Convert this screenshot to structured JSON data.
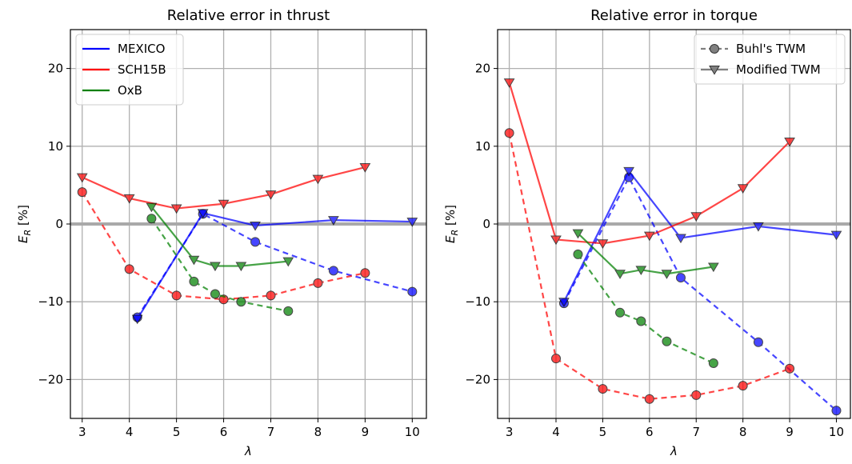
{
  "chart_data": [
    {
      "type": "line",
      "title": "Relative error in thrust",
      "xlabel": "λ",
      "ylabel": "E_R [%]",
      "xlim": [
        2.75,
        10.3
      ],
      "ylim": [
        -25,
        25
      ],
      "xticks": [
        3,
        4,
        5,
        6,
        7,
        8,
        9,
        10
      ],
      "yticks": [
        -20,
        -10,
        0,
        10,
        20
      ],
      "grid": true,
      "zero_line": true,
      "legend_position": "top-left",
      "legend": [
        "MEXICO",
        "SCH15B",
        "OxB"
      ],
      "series": [
        {
          "name": "MEXICO",
          "method": "Buhl's TWM",
          "color": "#0000ff",
          "x": [
            4.17,
            5.56,
            6.67,
            8.33,
            10.0
          ],
          "y": [
            -12.0,
            1.3,
            -2.3,
            -6.0,
            -8.7
          ]
        },
        {
          "name": "MEXICO",
          "method": "Modified TWM",
          "color": "#0000ff",
          "x": [
            4.17,
            5.56,
            6.67,
            8.33,
            10.0
          ],
          "y": [
            -12.2,
            1.4,
            -0.2,
            0.5,
            0.3
          ]
        },
        {
          "name": "SCH15B",
          "method": "Buhl's TWM",
          "color": "#ff0000",
          "x": [
            3,
            4,
            5,
            6,
            7,
            8,
            9
          ],
          "y": [
            4.1,
            -5.8,
            -9.2,
            -9.7,
            -9.2,
            -7.6,
            -6.3
          ]
        },
        {
          "name": "SCH15B",
          "method": "Modified TWM",
          "color": "#ff0000",
          "x": [
            3,
            4,
            5,
            6,
            7,
            8,
            9
          ],
          "y": [
            6.0,
            3.3,
            2.0,
            2.6,
            3.8,
            5.8,
            7.3
          ]
        },
        {
          "name": "OxB",
          "method": "Buhl's TWM",
          "color": "#008000",
          "x": [
            4.47,
            5.37,
            5.82,
            6.37,
            7.37
          ],
          "y": [
            0.7,
            -7.4,
            -9.0,
            -10.0,
            -11.2
          ]
        },
        {
          "name": "OxB",
          "method": "Modified TWM",
          "color": "#008000",
          "x": [
            4.47,
            5.37,
            5.82,
            6.37,
            7.37
          ],
          "y": [
            2.2,
            -4.6,
            -5.4,
            -5.4,
            -4.8
          ]
        }
      ]
    },
    {
      "type": "line",
      "title": "Relative error in torque",
      "xlabel": "λ",
      "ylabel": "E_R [%]",
      "xlim": [
        2.75,
        10.3
      ],
      "ylim": [
        -25,
        25
      ],
      "xticks": [
        3,
        4,
        5,
        6,
        7,
        8,
        9,
        10
      ],
      "yticks": [
        -20,
        -10,
        0,
        10,
        20
      ],
      "grid": true,
      "zero_line": true,
      "legend_position": "top-right",
      "legend": [
        "Buhl's TWM",
        "Modified TWM"
      ],
      "series": [
        {
          "name": "MEXICO",
          "method": "Buhl's TWM",
          "color": "#0000ff",
          "x": [
            4.17,
            5.56,
            6.67,
            8.33,
            10.0
          ],
          "y": [
            -10.2,
            6.0,
            -6.9,
            -15.2,
            -24.0
          ]
        },
        {
          "name": "MEXICO",
          "method": "Modified TWM",
          "color": "#0000ff",
          "x": [
            4.17,
            5.56,
            6.67,
            8.33,
            10.0
          ],
          "y": [
            -10.0,
            6.8,
            -1.8,
            -0.3,
            -1.4
          ]
        },
        {
          "name": "SCH15B",
          "method": "Buhl's TWM",
          "color": "#ff0000",
          "x": [
            3,
            4,
            5,
            6,
            7,
            8,
            9
          ],
          "y": [
            11.7,
            -17.3,
            -21.2,
            -22.5,
            -22.0,
            -20.8,
            -18.6
          ]
        },
        {
          "name": "SCH15B",
          "method": "Modified TWM",
          "color": "#ff0000",
          "x": [
            3,
            4,
            5,
            6,
            7,
            8,
            9
          ],
          "y": [
            18.2,
            -2.0,
            -2.5,
            -1.5,
            1.0,
            4.6,
            10.6
          ]
        },
        {
          "name": "OxB",
          "method": "Buhl's TWM",
          "color": "#008000",
          "x": [
            4.47,
            5.37,
            5.82,
            6.37,
            7.37
          ],
          "y": [
            -3.9,
            -11.4,
            -12.5,
            -15.1,
            -17.9
          ]
        },
        {
          "name": "OxB",
          "method": "Modified TWM",
          "color": "#008000",
          "x": [
            4.47,
            5.37,
            5.82,
            6.37,
            7.37
          ],
          "y": [
            -1.2,
            -6.4,
            -5.9,
            -6.4,
            -5.5
          ]
        }
      ]
    }
  ]
}
